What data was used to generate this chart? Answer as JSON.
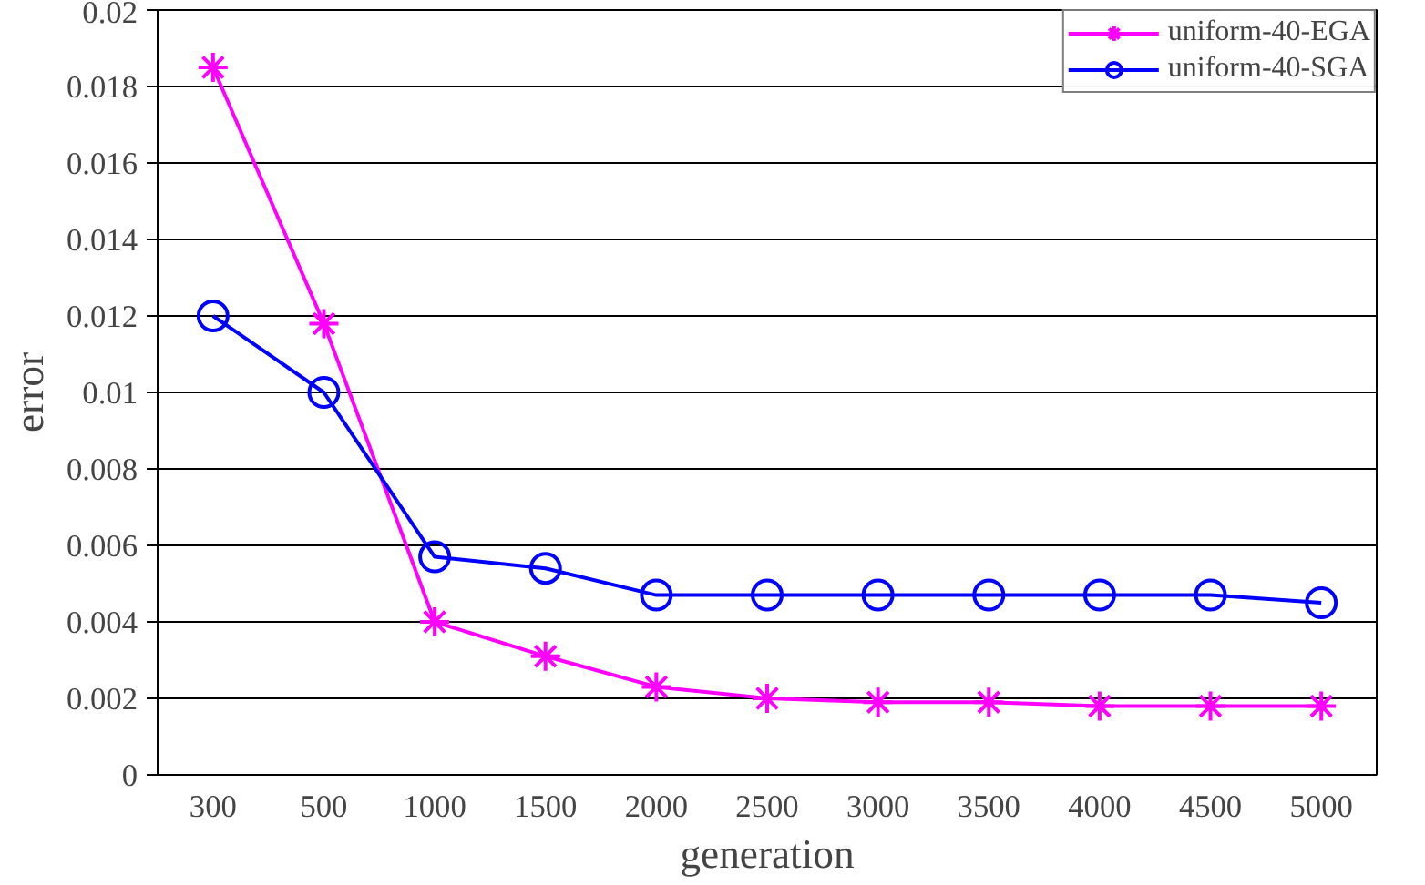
{
  "chart_data": {
    "type": "line",
    "xlabel": "generation",
    "ylabel": "error",
    "categories": [
      "300",
      "500",
      "1000",
      "1500",
      "2000",
      "2500",
      "3000",
      "3500",
      "4000",
      "4500",
      "5000"
    ],
    "series": [
      {
        "name": "uniform-40-EGA",
        "color": "#ff00ff",
        "marker": "cross",
        "values": [
          0.0185,
          0.0118,
          0.004,
          0.0031,
          0.0023,
          0.002,
          0.0019,
          0.0019,
          0.0018,
          0.0018,
          0.0018
        ]
      },
      {
        "name": "uniform-40-SGA",
        "color": "#0000ff",
        "marker": "circle",
        "values": [
          0.012,
          0.01,
          0.0057,
          0.0054,
          0.0047,
          0.0047,
          0.0047,
          0.0047,
          0.0047,
          0.0047,
          0.0045
        ]
      }
    ],
    "ylim": [
      0,
      0.02
    ],
    "yticks": [
      0,
      0.002,
      0.004,
      0.006,
      0.008,
      0.01,
      0.012,
      0.014,
      0.016,
      0.018,
      0.02
    ],
    "grid": "y",
    "legend": "top right",
    "line_style": "solid"
  }
}
